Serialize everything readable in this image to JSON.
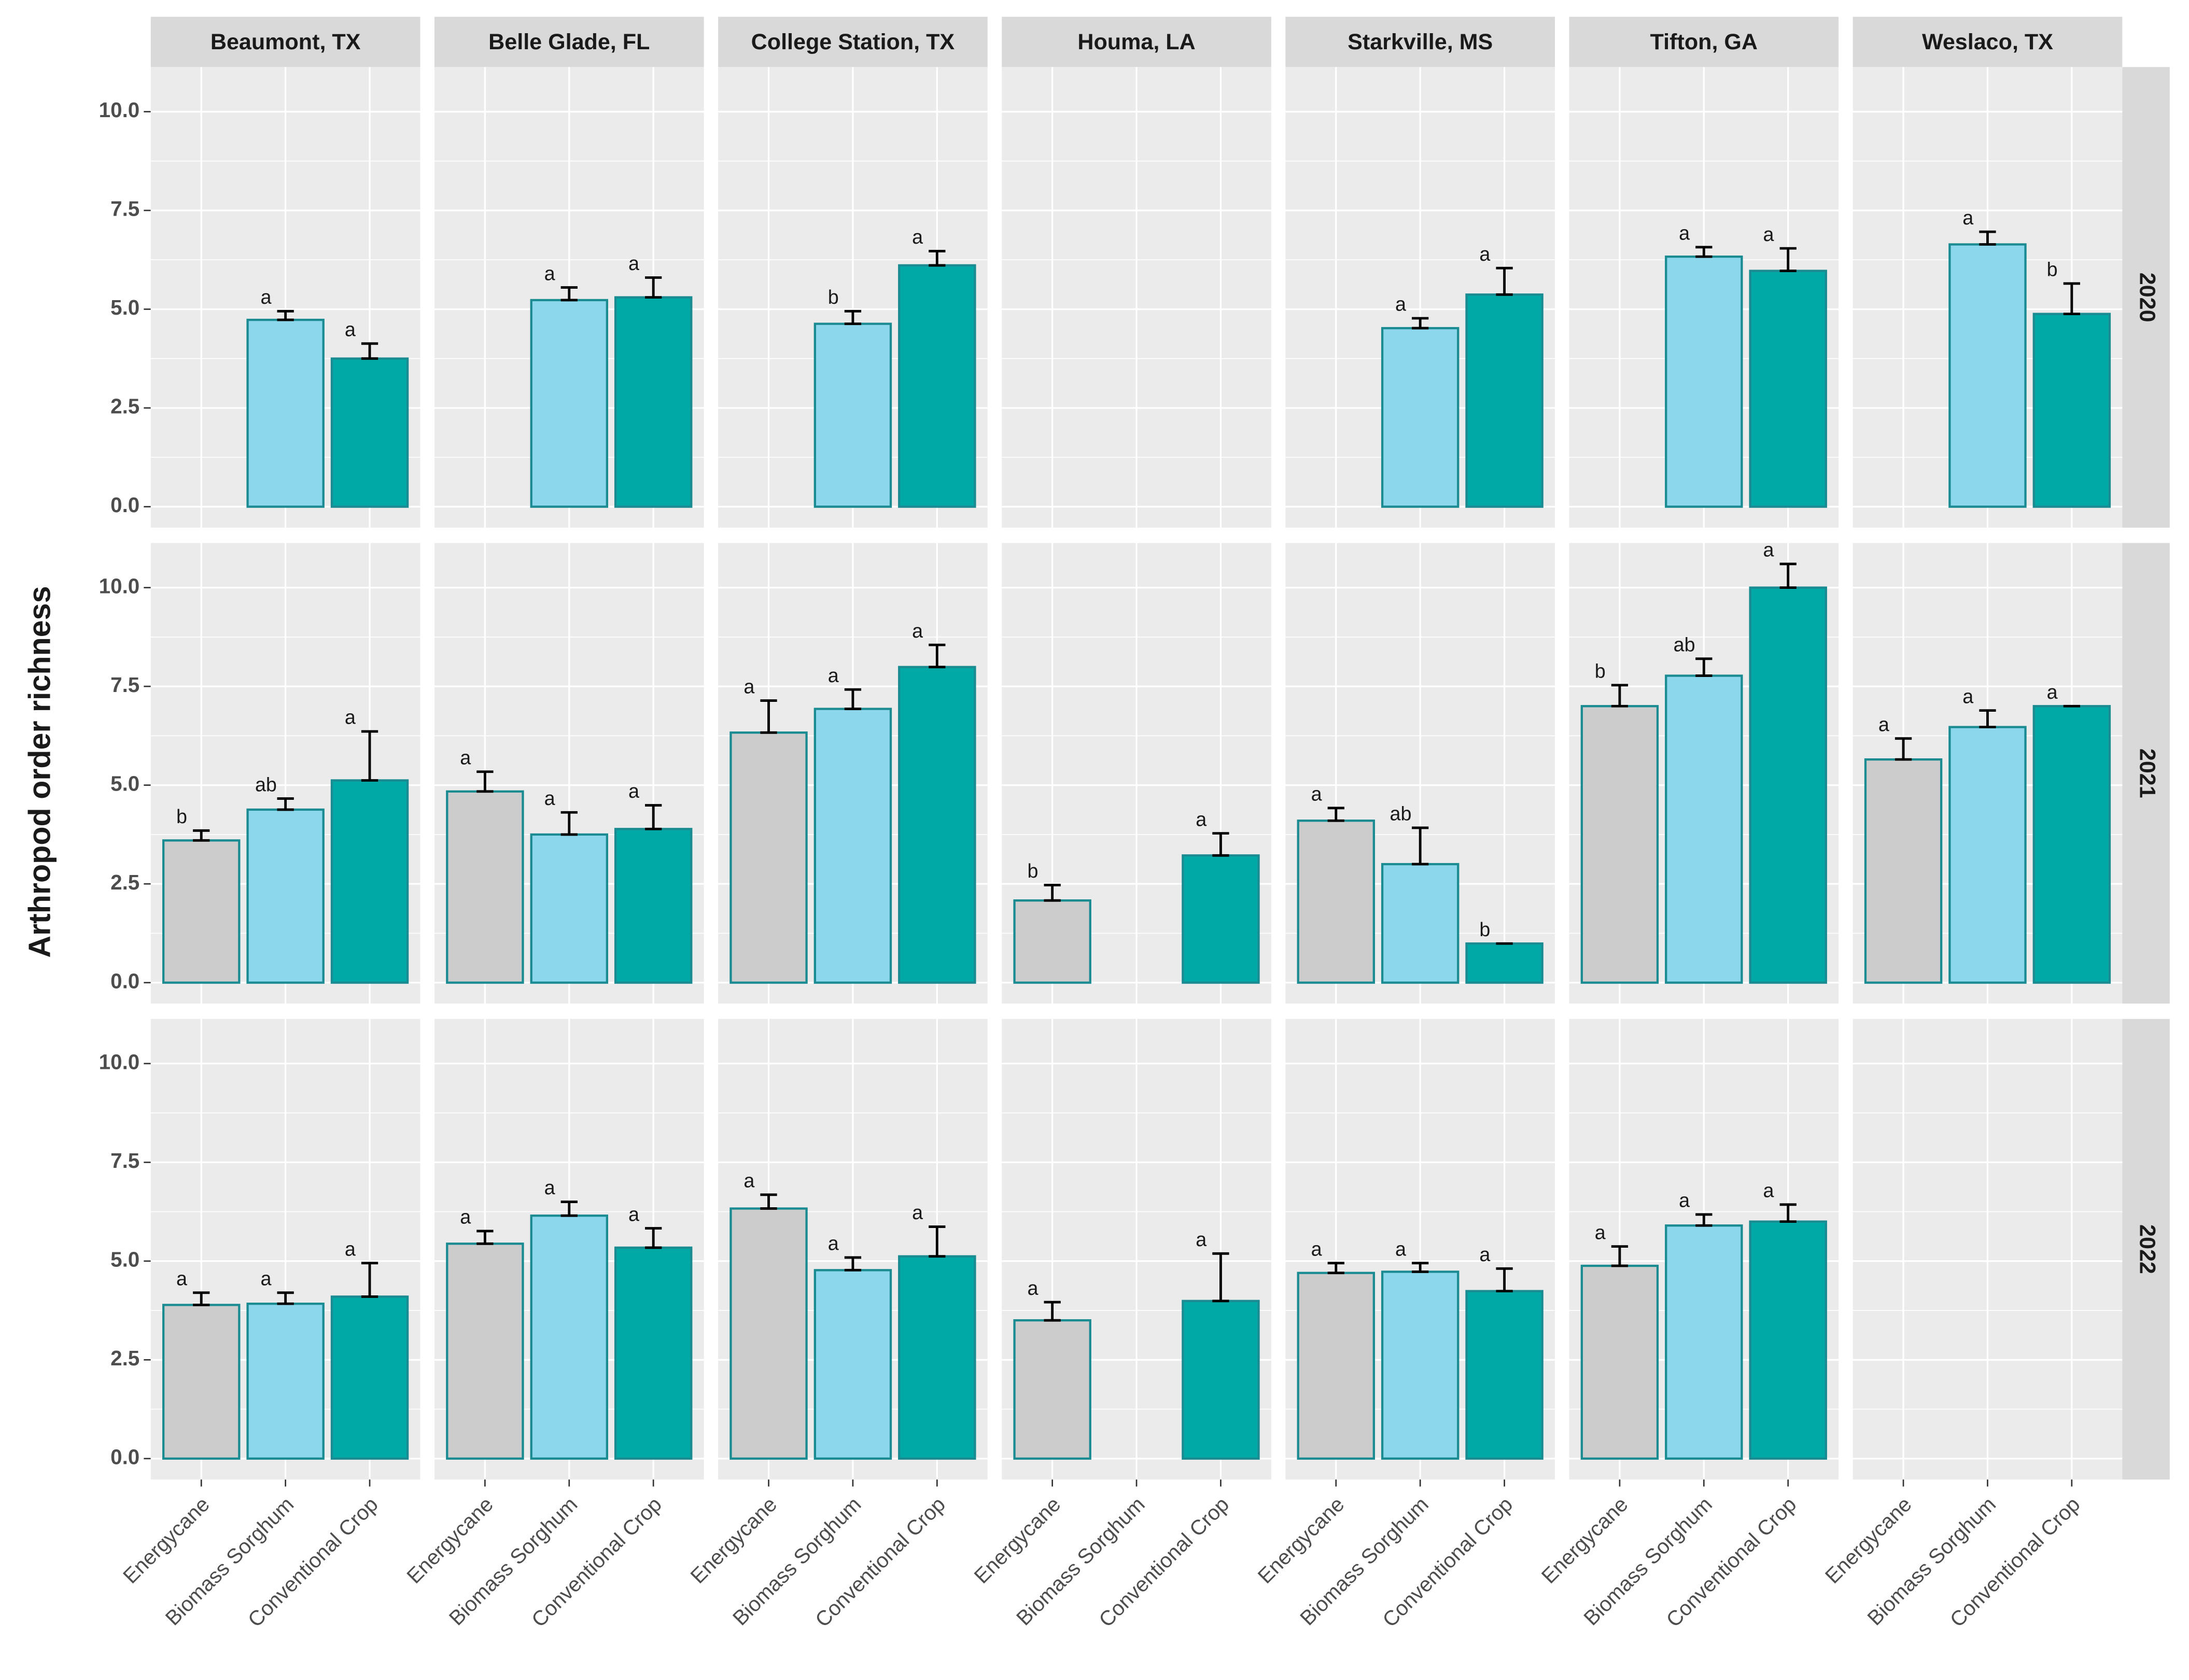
{
  "chart_data": {
    "type": "bar",
    "y_label": "Arthropod order richness",
    "categories": [
      "Energycane",
      "Biomass Sorghum",
      "Conventional Crop"
    ],
    "colors": [
      "#cccccc",
      "#8dd7ec",
      "#00a9a6"
    ],
    "outline_color": "#1b8b92",
    "columns": [
      "Beaumont, TX",
      "Belle Glade, FL",
      "College Station, TX",
      "Houma, LA",
      "Starkville, MS",
      "Tifton, GA",
      "Weslaco, TX"
    ],
    "rows": [
      "2020",
      "2021",
      "2022"
    ],
    "ylim": [
      -0.53,
      11.13
    ],
    "yticks": [
      {
        "value": 0,
        "label": "0.0"
      },
      2.5,
      {
        "value": 5,
        "label": "5.0"
      },
      7.5,
      {
        "value": 10,
        "label": "10.0"
      }
    ],
    "grid": true,
    "panels": [
      [
        {
          "values": [
            null,
            4.73,
            3.75
          ],
          "errors": [
            null,
            0.22,
            0.38
          ],
          "letters": [
            null,
            "a",
            "a"
          ]
        },
        {
          "values": [
            null,
            5.23,
            5.3
          ],
          "errors": [
            null,
            0.32,
            0.5
          ],
          "letters": [
            null,
            "a",
            "a"
          ]
        },
        {
          "values": [
            null,
            4.63,
            6.11
          ],
          "errors": [
            null,
            0.32,
            0.36
          ],
          "letters": [
            null,
            "b",
            "a"
          ]
        },
        {
          "values": [
            null,
            null,
            null
          ],
          "errors": [
            null,
            null,
            null
          ],
          "letters": [
            null,
            null,
            null
          ]
        },
        {
          "values": [
            null,
            4.52,
            5.37
          ],
          "errors": [
            null,
            0.25,
            0.67
          ],
          "letters": [
            null,
            "a",
            "a"
          ]
        },
        {
          "values": [
            null,
            6.33,
            5.97
          ],
          "errors": [
            null,
            0.24,
            0.57
          ],
          "letters": [
            null,
            "a",
            "a"
          ]
        },
        {
          "values": [
            null,
            6.64,
            4.88
          ],
          "errors": [
            null,
            0.32,
            0.77
          ],
          "letters": [
            null,
            "a",
            "b"
          ]
        }
      ],
      [
        {
          "values": [
            3.6,
            4.38,
            5.12
          ],
          "errors": [
            0.25,
            0.28,
            1.24
          ],
          "letters": [
            "b",
            "ab",
            "a"
          ]
        },
        {
          "values": [
            4.84,
            3.75,
            3.89
          ],
          "errors": [
            0.5,
            0.56,
            0.6
          ],
          "letters": [
            "a",
            "a",
            "a"
          ]
        },
        {
          "values": [
            6.33,
            6.93,
            7.99
          ],
          "errors": [
            0.81,
            0.49,
            0.56
          ],
          "letters": [
            "a",
            "a",
            "a"
          ]
        },
        {
          "values": [
            2.08,
            null,
            3.22
          ],
          "errors": [
            0.39,
            null,
            0.56
          ],
          "letters": [
            "b",
            null,
            "a"
          ]
        },
        {
          "values": [
            4.1,
            3.0,
            0.99
          ],
          "errors": [
            0.32,
            0.92,
            0
          ],
          "letters": [
            "a",
            "ab",
            "b"
          ]
        },
        {
          "values": [
            7.0,
            7.77,
            10.0
          ],
          "errors": [
            0.53,
            0.43,
            0.6
          ],
          "letters": [
            "b",
            "ab",
            "a"
          ]
        },
        {
          "values": [
            5.65,
            6.47,
            7.0
          ],
          "errors": [
            0.53,
            0.42,
            0
          ],
          "letters": [
            "a",
            "a",
            "a"
          ]
        }
      ],
      [
        {
          "values": [
            3.89,
            3.92,
            4.1
          ],
          "errors": [
            0.31,
            0.28,
            0.85
          ],
          "letters": [
            "a",
            "a",
            "a"
          ]
        },
        {
          "values": [
            5.44,
            6.15,
            5.34
          ],
          "errors": [
            0.32,
            0.35,
            0.49
          ],
          "letters": [
            "a",
            "a",
            "a"
          ]
        },
        {
          "values": [
            6.33,
            4.77,
            5.12
          ],
          "errors": [
            0.35,
            0.32,
            0.75
          ],
          "letters": [
            "a",
            "a",
            "a"
          ]
        },
        {
          "values": [
            3.5,
            null,
            3.99
          ],
          "errors": [
            0.46,
            null,
            1.2
          ],
          "letters": [
            "a",
            null,
            "a"
          ]
        },
        {
          "values": [
            4.7,
            4.73,
            4.24
          ],
          "errors": [
            0.25,
            0.22,
            0.57
          ],
          "letters": [
            "a",
            "a",
            "a"
          ]
        },
        {
          "values": [
            4.88,
            5.9,
            6.0
          ],
          "errors": [
            0.49,
            0.28,
            0.43
          ],
          "letters": [
            "a",
            "a",
            "a"
          ]
        },
        {
          "values": [
            null,
            null,
            null
          ],
          "errors": [
            null,
            null,
            null
          ],
          "letters": [
            null,
            null,
            null
          ]
        }
      ]
    ]
  }
}
